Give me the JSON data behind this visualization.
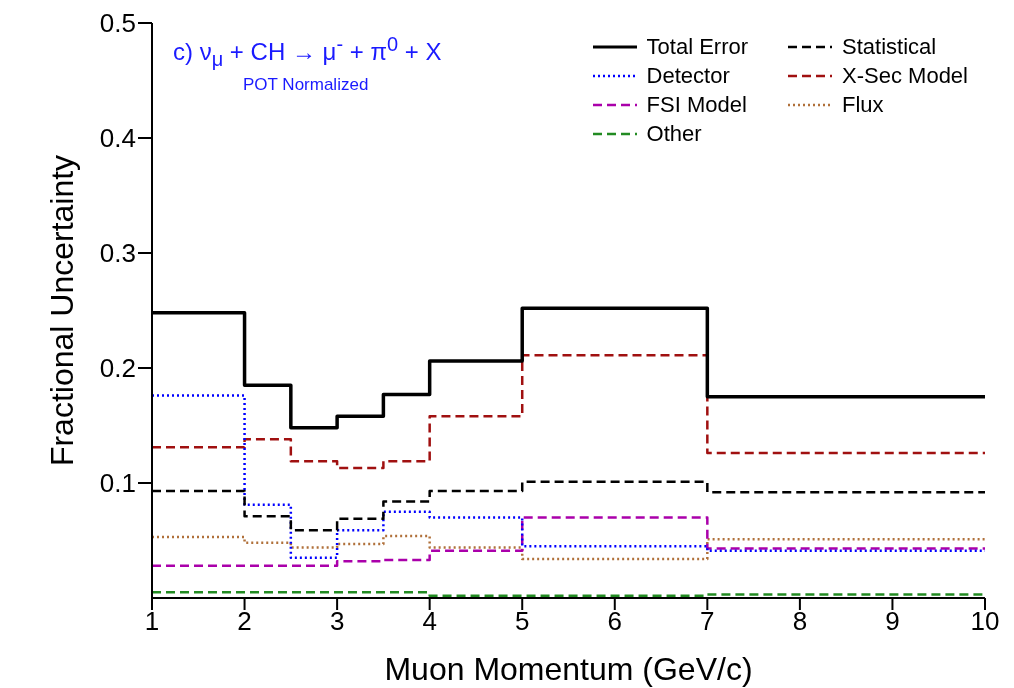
{
  "chart_data": {
    "type": "step",
    "xlabel": "Muon Momentum (GeV/c)",
    "ylabel": "Fractional Uncertainty",
    "annotations": [
      "c)  ν$_{μ}$ + CH → μ$^{-}$ + π$^{0}$ + X",
      "POT Normalized"
    ],
    "x": [
      1,
      2,
      2.5,
      3,
      3.5,
      4,
      5,
      7,
      10
    ],
    "xlim": [
      1,
      10
    ],
    "xticks": [
      1,
      2,
      3,
      4,
      5,
      6,
      7,
      8,
      9,
      10
    ],
    "ylim": [
      0,
      0.5
    ],
    "yticks": [
      0.1,
      0.2,
      0.3,
      0.4,
      0.5
    ],
    "legend": "top right",
    "marker": "none",
    "series": [
      {
        "name": "Total Error",
        "color": "#000000",
        "line_style": "solid",
        "values": [
          0.248,
          0.185,
          0.148,
          0.158,
          0.177,
          0.206,
          0.252,
          0.175,
          0.175
        ]
      },
      {
        "name": "Statistical",
        "color": "#000000",
        "line_style": "dashed",
        "values": [
          0.093,
          0.071,
          0.059,
          0.069,
          0.084,
          0.093,
          0.101,
          0.092,
          0.092
        ]
      },
      {
        "name": "Detector",
        "color": "#0000ff",
        "line_style": "dotted",
        "values": [
          0.176,
          0.081,
          0.035,
          0.059,
          0.075,
          0.07,
          0.045,
          0.041,
          0.041
        ]
      },
      {
        "name": "X-Sec Model",
        "color": "#a01010",
        "line_style": "dashed",
        "values": [
          0.131,
          0.138,
          0.119,
          0.113,
          0.119,
          0.158,
          0.211,
          0.126,
          0.126
        ]
      },
      {
        "name": "FSI Model",
        "color": "#aa00aa",
        "line_style": "dashed",
        "values": [
          0.028,
          0.028,
          0.028,
          0.032,
          0.033,
          0.041,
          0.07,
          0.043,
          0.043
        ]
      },
      {
        "name": "Flux",
        "color": "#b0703a",
        "line_style": "dotted",
        "values": [
          0.053,
          0.048,
          0.044,
          0.047,
          0.054,
          0.044,
          0.034,
          0.051,
          0.051
        ]
      },
      {
        "name": "Other",
        "color": "#228b22",
        "line_style": "dashed",
        "values": [
          0.005,
          0.005,
          0.005,
          0.005,
          0.005,
          0.002,
          0.002,
          0.003,
          0.003
        ]
      }
    ]
  }
}
